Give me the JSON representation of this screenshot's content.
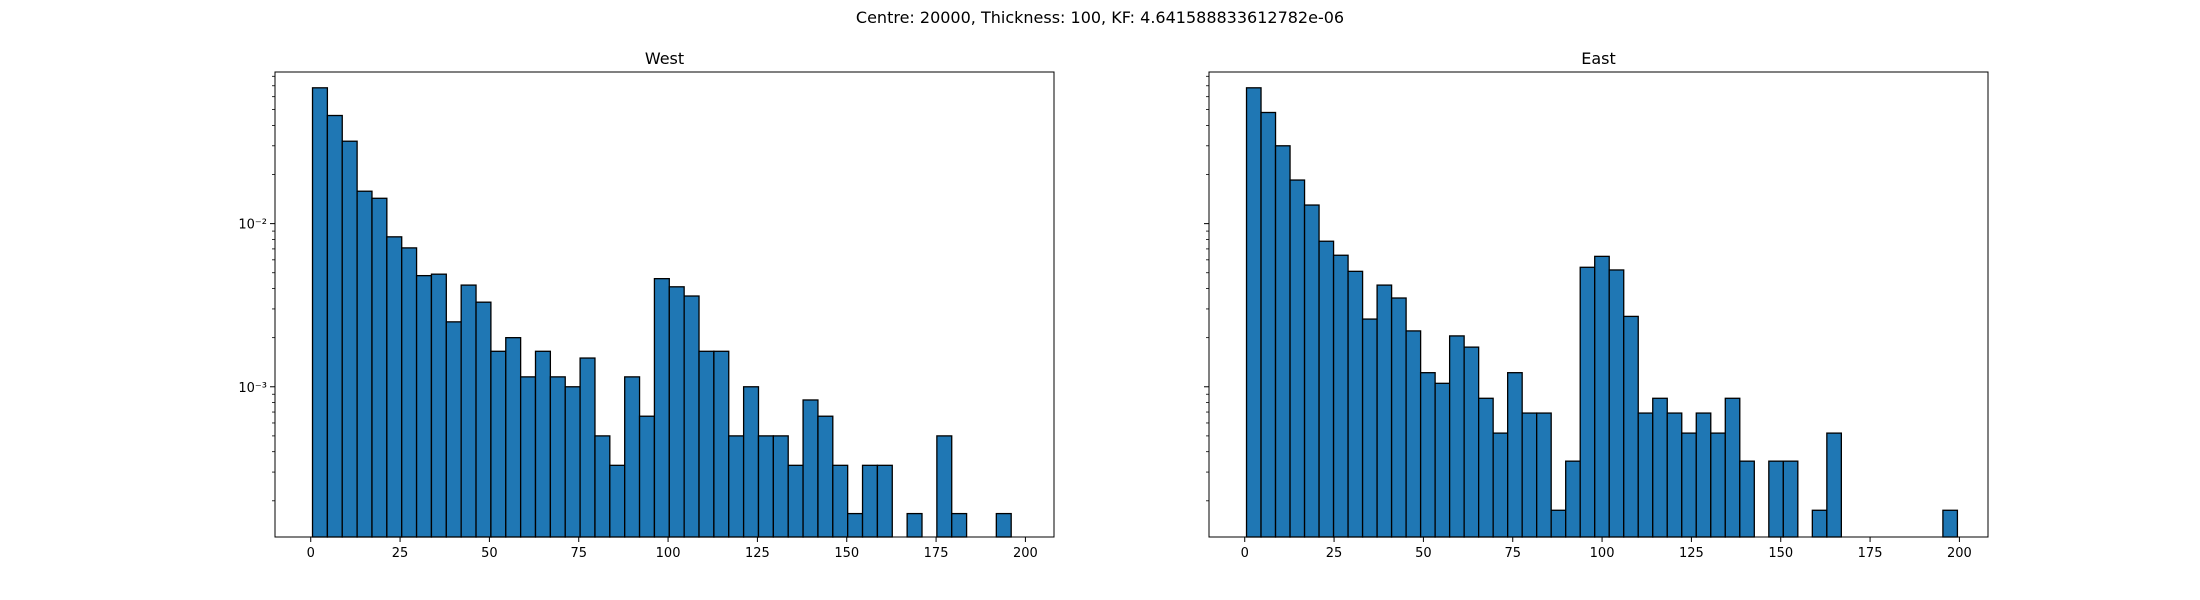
{
  "figure": {
    "suptitle": "Centre: 20000, Thickness: 100, KF: 4.641588833612782e-06",
    "bar_color": "#1f77b4",
    "edge_color": "#000000"
  },
  "chart_data": [
    {
      "type": "bar",
      "title": "West",
      "xlabel": "",
      "ylabel": "",
      "yscale": "log",
      "xlim": [
        -10,
        208
      ],
      "ylim": [
        0.00012,
        0.085
      ],
      "xticks": [
        0,
        25,
        50,
        75,
        100,
        125,
        150,
        175,
        200
      ],
      "yticks": [
        {
          "value": 0.001,
          "label": "10⁻³"
        },
        {
          "value": 0.01,
          "label": "10⁻²"
        }
      ],
      "bin_width": 4.16,
      "bin_starts": [
        0.5,
        4.66,
        8.82,
        12.98,
        17.14,
        21.3,
        25.46,
        29.62,
        33.78,
        37.94,
        42.1,
        46.26,
        50.42,
        54.58,
        58.74,
        62.9,
        67.06,
        71.22,
        75.38,
        79.54,
        83.7,
        87.86,
        92.02,
        96.18,
        100.34,
        104.5,
        108.66,
        112.82,
        116.98,
        121.14,
        125.3,
        129.46,
        133.62,
        137.78,
        141.94,
        146.1,
        150.26,
        154.42,
        158.58,
        162.74,
        166.9,
        171.06,
        175.22,
        179.38,
        183.54,
        187.7,
        191.86,
        196.02
      ],
      "values": [
        0.068,
        0.046,
        0.032,
        0.0158,
        0.0143,
        0.0083,
        0.0071,
        0.0048,
        0.0049,
        0.0025,
        0.0042,
        0.0033,
        0.00165,
        0.002,
        0.00115,
        0.00165,
        0.00115,
        0.001,
        0.0015,
        0.0005,
        0.00033,
        0.00115,
        0.00066,
        0.0046,
        0.0041,
        0.0036,
        0.00165,
        0.00165,
        0.0005,
        0.001,
        0.0005,
        0.0005,
        0.00033,
        0.00083,
        0.00066,
        0.00033,
        0.000167,
        0.00033,
        0.00033,
        0,
        0.000167,
        0,
        0.0005,
        0.000167,
        0,
        0,
        0.000167,
        0
      ]
    },
    {
      "type": "bar",
      "title": "East",
      "xlabel": "",
      "ylabel": "",
      "yscale": "log",
      "xlim": [
        -10,
        208
      ],
      "ylim": [
        0.00012,
        0.085
      ],
      "xticks": [
        0,
        25,
        50,
        75,
        100,
        125,
        150,
        175,
        200
      ],
      "yticks": [],
      "bin_width": 4.06,
      "bin_starts": [
        0.5,
        4.56,
        8.62,
        12.68,
        16.74,
        20.8,
        24.86,
        28.92,
        32.98,
        37.04,
        41.1,
        45.16,
        49.22,
        53.28,
        57.34,
        61.4,
        65.46,
        69.52,
        73.58,
        77.64,
        81.7,
        85.76,
        89.82,
        93.88,
        97.94,
        102.0,
        106.06,
        110.12,
        114.18,
        118.24,
        122.3,
        126.36,
        130.42,
        134.48,
        138.54,
        142.6,
        146.66,
        150.72,
        154.78,
        158.84,
        162.9,
        166.96,
        171.02,
        175.08,
        179.14,
        183.2,
        187.26,
        191.32,
        195.38
      ],
      "values": [
        0.068,
        0.048,
        0.03,
        0.0185,
        0.013,
        0.0078,
        0.0064,
        0.0051,
        0.0026,
        0.0042,
        0.0035,
        0.0022,
        0.00122,
        0.00105,
        0.00205,
        0.00175,
        0.00085,
        0.00052,
        0.00122,
        0.00069,
        0.00069,
        0.000175,
        0.00035,
        0.0054,
        0.0063,
        0.0052,
        0.0027,
        0.00069,
        0.00085,
        0.00069,
        0.00052,
        0.00069,
        0.00052,
        0.00085,
        0.00035,
        0,
        0.00035,
        0.00035,
        0,
        0.000175,
        0.00052,
        0,
        0,
        0,
        0,
        0,
        0,
        0,
        0.000175
      ]
    }
  ]
}
